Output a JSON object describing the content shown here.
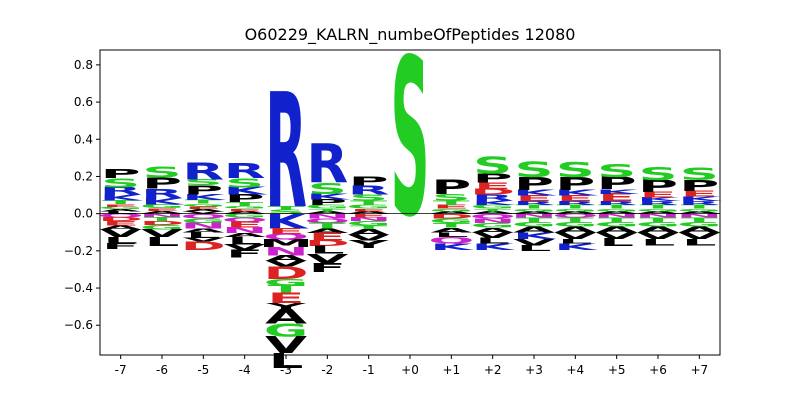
{
  "chart_data": {
    "type": "sequence-logo",
    "title": "O60229_KALRN_numbeOfPeptides 12080",
    "xlabel": "",
    "ylabel": "",
    "ylim": [
      -0.76,
      0.88
    ],
    "yticks": [
      -0.6,
      -0.4,
      -0.2,
      0.0,
      0.2,
      0.4,
      0.6,
      0.8
    ],
    "ytick_labels": [
      "−0.6",
      "−0.4",
      "−0.2",
      "0.0",
      "0.2",
      "0.4",
      "0.6",
      "0.8"
    ],
    "categories": [
      "-7",
      "-6",
      "-5",
      "-4",
      "-3",
      "-2",
      "-1",
      "+0",
      "+1",
      "+2",
      "+3",
      "+4",
      "+5",
      "+6",
      "+7"
    ],
    "colors": {
      "P": "#000000",
      "S": "#22cc22",
      "R": "#1122cc",
      "K": "#1122cc",
      "G": "#22cc22",
      "T": "#22cc22",
      "A": "#000000",
      "V": "#000000",
      "L": "#000000",
      "E": "#dd2222",
      "D": "#dd2222",
      "N": "#cc22cc",
      "Q": "#cc22cc",
      "M": "#000000",
      "F": "#000000",
      "Y": "#000000",
      "H": "#1122cc",
      "I": "#000000",
      "C": "#22cc22",
      "W": "#000000"
    },
    "positions": [
      {
        "pos": "-7",
        "above": [
          [
            "L",
            0.012
          ],
          [
            "A",
            0.012
          ],
          [
            "G",
            0.013
          ],
          [
            "E",
            0.015
          ],
          [
            "T",
            0.02
          ],
          [
            "K",
            0.03
          ],
          [
            "R",
            0.04
          ],
          [
            "S",
            0.05
          ],
          [
            "P",
            0.05
          ]
        ],
        "below": [
          [
            "Q",
            0.02
          ],
          [
            "D",
            0.02
          ],
          [
            "E",
            0.025
          ],
          [
            "A",
            0.02
          ],
          [
            "V",
            0.04
          ],
          [
            "L",
            0.035
          ],
          [
            "F",
            0.03
          ]
        ]
      },
      {
        "pos": "-6",
        "above": [
          [
            "A",
            0.015
          ],
          [
            "E",
            0.015
          ],
          [
            "G",
            0.02
          ],
          [
            "K",
            0.035
          ],
          [
            "R",
            0.05
          ],
          [
            "P",
            0.06
          ],
          [
            "S",
            0.06
          ]
        ],
        "below": [
          [
            "N",
            0.02
          ],
          [
            "T",
            0.02
          ],
          [
            "D",
            0.02
          ],
          [
            "G",
            0.025
          ],
          [
            "V",
            0.04
          ],
          [
            "L",
            0.05
          ]
        ]
      },
      {
        "pos": "-5",
        "above": [
          [
            "V",
            0.012
          ],
          [
            "A",
            0.012
          ],
          [
            "E",
            0.015
          ],
          [
            "G",
            0.015
          ],
          [
            "T",
            0.02
          ],
          [
            "K",
            0.03
          ],
          [
            "P",
            0.05
          ],
          [
            "S",
            0.03
          ],
          [
            "R",
            0.09
          ]
        ],
        "below": [
          [
            "Q",
            0.025
          ],
          [
            "G",
            0.025
          ],
          [
            "N",
            0.03
          ],
          [
            "A",
            0.02
          ],
          [
            "L",
            0.03
          ],
          [
            "V",
            0.02
          ],
          [
            "D",
            0.045
          ]
        ]
      },
      {
        "pos": "-4",
        "above": [
          [
            "A",
            0.012
          ],
          [
            "E",
            0.015
          ],
          [
            "G",
            0.015
          ],
          [
            "T",
            0.02
          ],
          [
            "P",
            0.04
          ],
          [
            "K",
            0.04
          ],
          [
            "S",
            0.05
          ],
          [
            "R",
            0.08
          ]
        ],
        "below": [
          [
            "G",
            0.02
          ],
          [
            "Q",
            0.025
          ],
          [
            "E",
            0.03
          ],
          [
            "N",
            0.03
          ],
          [
            "A",
            0.02
          ],
          [
            "L",
            0.04
          ],
          [
            "V",
            0.03
          ],
          [
            "F",
            0.04
          ]
        ]
      },
      {
        "pos": "-3",
        "above": [
          [
            "S",
            0.02
          ],
          [
            "T",
            0.02
          ],
          [
            "R",
            0.62
          ]
        ],
        "below": [
          [
            "K",
            0.08
          ],
          [
            "E",
            0.03
          ],
          [
            "Q",
            0.03
          ],
          [
            "M",
            0.04
          ],
          [
            "N",
            0.045
          ],
          [
            "A",
            0.03
          ],
          [
            "V",
            0.03
          ],
          [
            "D",
            0.065
          ],
          [
            "G",
            0.035
          ],
          [
            "T",
            0.04
          ],
          [
            "E",
            0.055
          ],
          [
            "Y",
            0.035
          ],
          [
            "A",
            0.075
          ],
          [
            "G",
            0.07
          ],
          [
            "V",
            0.09
          ],
          [
            "L",
            0.08
          ]
        ]
      },
      {
        "pos": "-2",
        "above": [
          [
            "A",
            0.012
          ],
          [
            "T",
            0.015
          ],
          [
            "G",
            0.02
          ],
          [
            "P",
            0.03
          ],
          [
            "K",
            0.03
          ],
          [
            "S",
            0.06
          ],
          [
            "R",
            0.21
          ]
        ],
        "below": [
          [
            "N",
            0.025
          ],
          [
            "Q",
            0.025
          ],
          [
            "T",
            0.03
          ],
          [
            "A",
            0.025
          ],
          [
            "E",
            0.04
          ],
          [
            "D",
            0.03
          ],
          [
            "L",
            0.04
          ],
          [
            "V",
            0.05
          ],
          [
            "F",
            0.05
          ]
        ]
      },
      {
        "pos": "-1",
        "above": [
          [
            "A",
            0.012
          ],
          [
            "E",
            0.015
          ],
          [
            "G",
            0.02
          ],
          [
            "T",
            0.025
          ],
          [
            "S",
            0.03
          ],
          [
            "R",
            0.05
          ],
          [
            "P",
            0.05
          ]
        ],
        "below": [
          [
            "E",
            0.02
          ],
          [
            "N",
            0.02
          ],
          [
            "G",
            0.025
          ],
          [
            "T",
            0.02
          ],
          [
            "A",
            0.03
          ],
          [
            "V",
            0.03
          ],
          [
            "Y",
            0.04
          ]
        ]
      },
      {
        "pos": "+0",
        "above": [
          [
            "S",
            0.85
          ]
        ],
        "below": []
      },
      {
        "pos": "+1",
        "above": [
          [
            "A",
            0.012
          ],
          [
            "G",
            0.015
          ],
          [
            "E",
            0.02
          ],
          [
            "T",
            0.025
          ],
          [
            "S",
            0.035
          ],
          [
            "P",
            0.075
          ]
        ],
        "below": [
          [
            "D",
            0.025
          ],
          [
            "G",
            0.025
          ],
          [
            "T",
            0.025
          ],
          [
            "A",
            0.025
          ],
          [
            "L",
            0.025
          ],
          [
            "Q",
            0.035
          ],
          [
            "K",
            0.035
          ]
        ]
      },
      {
        "pos": "+2",
        "above": [
          [
            "A",
            0.012
          ],
          [
            "T",
            0.015
          ],
          [
            "G",
            0.02
          ],
          [
            "K",
            0.025
          ],
          [
            "R",
            0.03
          ],
          [
            "D",
            0.03
          ],
          [
            "E",
            0.035
          ],
          [
            "P",
            0.05
          ],
          [
            "S",
            0.09
          ]
        ],
        "below": [
          [
            "Q",
            0.025
          ],
          [
            "N",
            0.025
          ],
          [
            "G",
            0.025
          ],
          [
            "A",
            0.025
          ],
          [
            "V",
            0.03
          ],
          [
            "L",
            0.03
          ],
          [
            "K",
            0.035
          ]
        ]
      },
      {
        "pos": "+3",
        "above": [
          [
            "A",
            0.012
          ],
          [
            "G",
            0.015
          ],
          [
            "T",
            0.02
          ],
          [
            "R",
            0.02
          ],
          [
            "E",
            0.03
          ],
          [
            "K",
            0.03
          ],
          [
            "P",
            0.07
          ],
          [
            "S",
            0.085
          ]
        ],
        "below": [
          [
            "N",
            0.02
          ],
          [
            "T",
            0.025
          ],
          [
            "G",
            0.025
          ],
          [
            "A",
            0.03
          ],
          [
            "K",
            0.035
          ],
          [
            "V",
            0.035
          ],
          [
            "L",
            0.03
          ]
        ]
      },
      {
        "pos": "+4",
        "above": [
          [
            "A",
            0.012
          ],
          [
            "G",
            0.015
          ],
          [
            "T",
            0.02
          ],
          [
            "R",
            0.02
          ],
          [
            "E",
            0.03
          ],
          [
            "K",
            0.03
          ],
          [
            "P",
            0.07
          ],
          [
            "S",
            0.08
          ]
        ],
        "below": [
          [
            "Q",
            0.02
          ],
          [
            "T",
            0.025
          ],
          [
            "G",
            0.025
          ],
          [
            "A",
            0.03
          ],
          [
            "V",
            0.035
          ],
          [
            "L",
            0.025
          ],
          [
            "K",
            0.035
          ]
        ]
      },
      {
        "pos": "+5",
        "above": [
          [
            "A",
            0.012
          ],
          [
            "G",
            0.015
          ],
          [
            "T",
            0.02
          ],
          [
            "R",
            0.02
          ],
          [
            "E",
            0.04
          ],
          [
            "K",
            0.025
          ],
          [
            "P",
            0.065
          ],
          [
            "S",
            0.07
          ]
        ],
        "below": [
          [
            "N",
            0.02
          ],
          [
            "T",
            0.025
          ],
          [
            "G",
            0.025
          ],
          [
            "A",
            0.03
          ],
          [
            "V",
            0.035
          ],
          [
            "L",
            0.04
          ]
        ]
      },
      {
        "pos": "+6",
        "above": [
          [
            "A",
            0.012
          ],
          [
            "G",
            0.015
          ],
          [
            "T",
            0.02
          ],
          [
            "R",
            0.02
          ],
          [
            "K",
            0.02
          ],
          [
            "E",
            0.03
          ],
          [
            "P",
            0.065
          ],
          [
            "S",
            0.07
          ]
        ],
        "below": [
          [
            "N",
            0.02
          ],
          [
            "T",
            0.025
          ],
          [
            "G",
            0.025
          ],
          [
            "A",
            0.03
          ],
          [
            "V",
            0.035
          ],
          [
            "L",
            0.035
          ]
        ]
      },
      {
        "pos": "+7",
        "above": [
          [
            "A",
            0.012
          ],
          [
            "G",
            0.015
          ],
          [
            "T",
            0.02
          ],
          [
            "R",
            0.02
          ],
          [
            "K",
            0.025
          ],
          [
            "E",
            0.03
          ],
          [
            "P",
            0.06
          ],
          [
            "S",
            0.065
          ]
        ],
        "below": [
          [
            "N",
            0.02
          ],
          [
            "T",
            0.025
          ],
          [
            "G",
            0.025
          ],
          [
            "A",
            0.03
          ],
          [
            "V",
            0.035
          ],
          [
            "L",
            0.035
          ]
        ]
      }
    ]
  }
}
